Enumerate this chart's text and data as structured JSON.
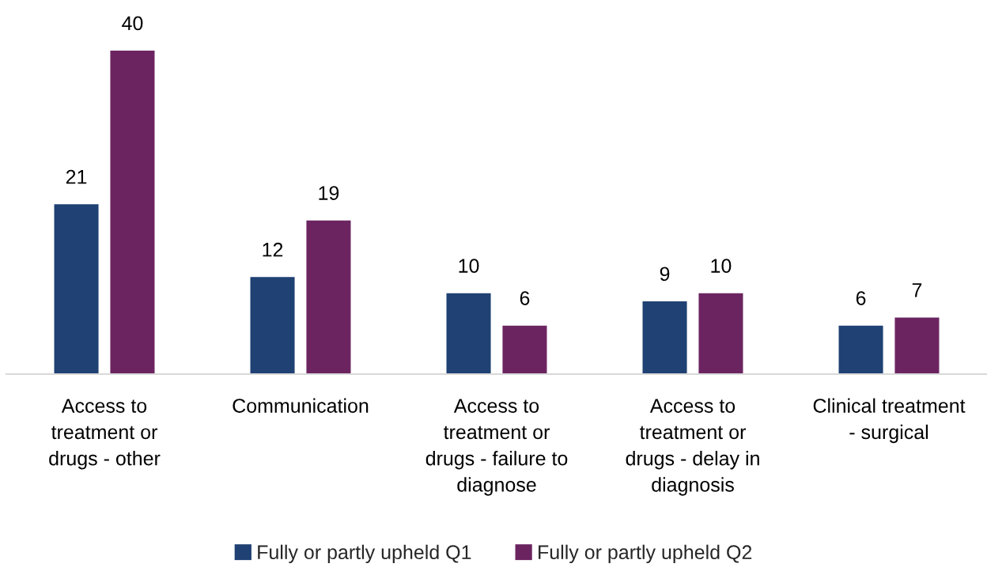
{
  "chart_data": {
    "type": "bar",
    "categories": [
      "Access to\ntreatment or\ndrugs - other",
      "Communication",
      "Access to\ntreatment or\ndrugs - failure to\ndiagnose",
      "Access to\ntreatment or\ndrugs - delay in\ndiagnosis",
      "Clinical treatment\n- surgical"
    ],
    "series": [
      {
        "name": "Fully or partly upheld Q1",
        "color": "#1f4173",
        "values": [
          21,
          12,
          10,
          9,
          6
        ]
      },
      {
        "name": "Fully or partly upheld Q2",
        "color": "#6c2461",
        "values": [
          40,
          19,
          6,
          10,
          7
        ]
      }
    ],
    "data_labels": true,
    "legend": "bottom"
  }
}
